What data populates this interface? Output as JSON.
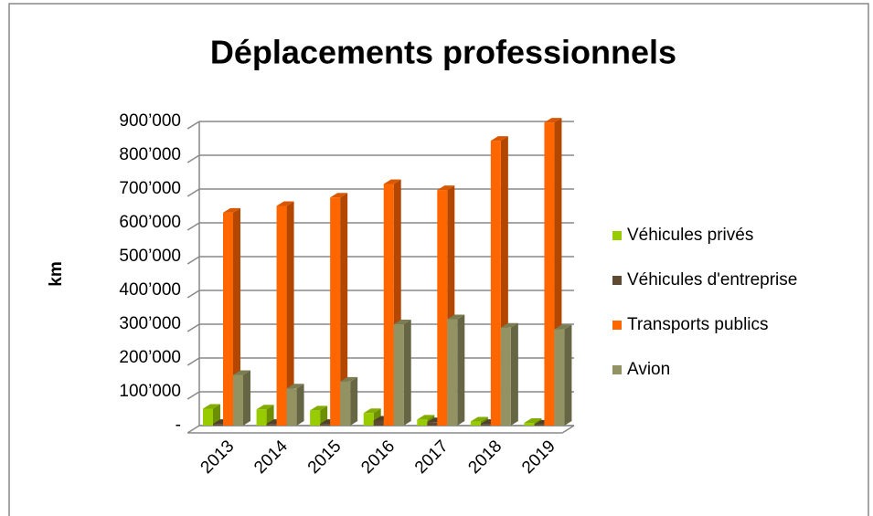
{
  "chart_data": {
    "type": "bar3d",
    "title": "Déplacements professionnels",
    "y_label": "km",
    "categories": [
      "2013",
      "2014",
      "2015",
      "2016",
      "2017",
      "2018",
      "2019"
    ],
    "series": [
      {
        "name": "Véhicules privés",
        "color": "#99cc00",
        "values": [
          50000,
          48000,
          45000,
          37000,
          18000,
          12000,
          8000
        ]
      },
      {
        "name": "Véhicules d'entreprise",
        "color": "#5f4b32",
        "values": [
          5000,
          5000,
          5000,
          15000,
          10000,
          5000,
          3000
        ]
      },
      {
        "name": "Transports publics",
        "color": "#ff6600",
        "values": [
          630000,
          650000,
          675000,
          715000,
          697000,
          843000,
          897000
        ]
      },
      {
        "name": "Avion",
        "color": "#929262",
        "values": [
          150000,
          110000,
          130000,
          300000,
          315000,
          290000,
          285000
        ]
      }
    ],
    "ylim": [
      0,
      900000
    ],
    "yticks": [
      {
        "value": 0,
        "label": "-"
      },
      {
        "value": 100000,
        "label": "100’000"
      },
      {
        "value": 200000,
        "label": "200’000"
      },
      {
        "value": 300000,
        "label": "300’000"
      },
      {
        "value": 400000,
        "label": "400’000"
      },
      {
        "value": 500000,
        "label": "500’000"
      },
      {
        "value": 600000,
        "label": "600’000"
      },
      {
        "value": 700000,
        "label": "700’000"
      },
      {
        "value": 800000,
        "label": "800’000"
      },
      {
        "value": 900000,
        "label": "900’000"
      }
    ],
    "grid": true,
    "legend": "right"
  }
}
